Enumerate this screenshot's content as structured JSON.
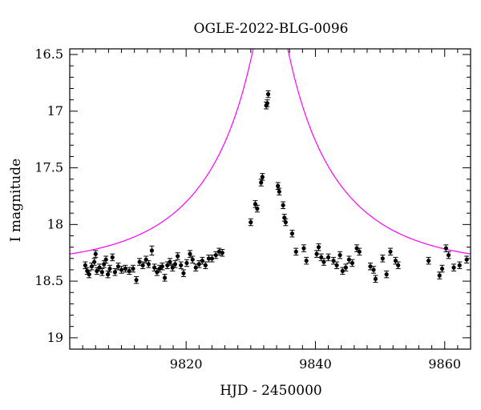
{
  "chart_data": {
    "type": "scatter",
    "title": "OGLE-2022-BLG-0096",
    "xlabel": "HJD - 2450000",
    "ylabel": "I magnitude",
    "xlim": [
      9802,
      9864
    ],
    "ylim": [
      19.1,
      16.45
    ],
    "y_inverted": true,
    "xticks": [
      "9820",
      "9840",
      "9860"
    ],
    "yticks": [
      "16.5",
      "17",
      "17.5",
      "18",
      "18.5",
      "19"
    ],
    "grid": false,
    "legend": "none",
    "colors": {
      "model": "#ff00ff",
      "points": "#000000"
    },
    "model": {
      "t0": 9833.05,
      "u0": 0.1,
      "tE": 19,
      "baseline": 18.37,
      "n_points": 400
    },
    "points": [
      {
        "x": 9804.4,
        "y": 18.36,
        "e": 0.03
      },
      {
        "x": 9804.7,
        "y": 18.41,
        "e": 0.03
      },
      {
        "x": 9805.0,
        "y": 18.44,
        "e": 0.03
      },
      {
        "x": 9805.4,
        "y": 18.37,
        "e": 0.03
      },
      {
        "x": 9805.8,
        "y": 18.33,
        "e": 0.03
      },
      {
        "x": 9806.0,
        "y": 18.26,
        "e": 0.03
      },
      {
        "x": 9806.2,
        "y": 18.41,
        "e": 0.03
      },
      {
        "x": 9806.6,
        "y": 18.38,
        "e": 0.03
      },
      {
        "x": 9807.0,
        "y": 18.42,
        "e": 0.03
      },
      {
        "x": 9807.3,
        "y": 18.35,
        "e": 0.03
      },
      {
        "x": 9807.6,
        "y": 18.31,
        "e": 0.03
      },
      {
        "x": 9807.9,
        "y": 18.44,
        "e": 0.03
      },
      {
        "x": 9808.2,
        "y": 18.39,
        "e": 0.03
      },
      {
        "x": 9808.6,
        "y": 18.29,
        "e": 0.03
      },
      {
        "x": 9809.0,
        "y": 18.42,
        "e": 0.03
      },
      {
        "x": 9809.5,
        "y": 18.37,
        "e": 0.03
      },
      {
        "x": 9810.0,
        "y": 18.4,
        "e": 0.03
      },
      {
        "x": 9810.6,
        "y": 18.39,
        "e": 0.03
      },
      {
        "x": 9811.2,
        "y": 18.41,
        "e": 0.03
      },
      {
        "x": 9811.8,
        "y": 18.39,
        "e": 0.03
      },
      {
        "x": 9812.3,
        "y": 18.49,
        "e": 0.03
      },
      {
        "x": 9812.8,
        "y": 18.33,
        "e": 0.03
      },
      {
        "x": 9813.3,
        "y": 18.36,
        "e": 0.03
      },
      {
        "x": 9813.8,
        "y": 18.31,
        "e": 0.03
      },
      {
        "x": 9814.2,
        "y": 18.35,
        "e": 0.03
      },
      {
        "x": 9814.7,
        "y": 18.23,
        "e": 0.04
      },
      {
        "x": 9815.1,
        "y": 18.38,
        "e": 0.03
      },
      {
        "x": 9815.5,
        "y": 18.42,
        "e": 0.03
      },
      {
        "x": 9815.9,
        "y": 18.39,
        "e": 0.03
      },
      {
        "x": 9816.3,
        "y": 18.37,
        "e": 0.03
      },
      {
        "x": 9816.7,
        "y": 18.47,
        "e": 0.03
      },
      {
        "x": 9817.1,
        "y": 18.36,
        "e": 0.03
      },
      {
        "x": 9817.5,
        "y": 18.33,
        "e": 0.03
      },
      {
        "x": 9817.9,
        "y": 18.38,
        "e": 0.03
      },
      {
        "x": 9818.3,
        "y": 18.35,
        "e": 0.03
      },
      {
        "x": 9818.7,
        "y": 18.28,
        "e": 0.03
      },
      {
        "x": 9819.2,
        "y": 18.36,
        "e": 0.03
      },
      {
        "x": 9819.6,
        "y": 18.43,
        "e": 0.03
      },
      {
        "x": 9820.1,
        "y": 18.34,
        "e": 0.03
      },
      {
        "x": 9820.6,
        "y": 18.26,
        "e": 0.03
      },
      {
        "x": 9821.0,
        "y": 18.31,
        "e": 0.03
      },
      {
        "x": 9821.5,
        "y": 18.38,
        "e": 0.03
      },
      {
        "x": 9822.0,
        "y": 18.35,
        "e": 0.03
      },
      {
        "x": 9822.5,
        "y": 18.32,
        "e": 0.03
      },
      {
        "x": 9823.0,
        "y": 18.36,
        "e": 0.03
      },
      {
        "x": 9823.5,
        "y": 18.3,
        "e": 0.03
      },
      {
        "x": 9824.0,
        "y": 18.3,
        "e": 0.03
      },
      {
        "x": 9824.6,
        "y": 18.27,
        "e": 0.03
      },
      {
        "x": 9825.1,
        "y": 18.24,
        "e": 0.03
      },
      {
        "x": 9825.6,
        "y": 18.25,
        "e": 0.03
      },
      {
        "x": 9830.0,
        "y": 17.98,
        "e": 0.03
      },
      {
        "x": 9830.7,
        "y": 17.82,
        "e": 0.03
      },
      {
        "x": 9831.0,
        "y": 17.86,
        "e": 0.03
      },
      {
        "x": 9831.6,
        "y": 17.63,
        "e": 0.03
      },
      {
        "x": 9831.8,
        "y": 17.58,
        "e": 0.03
      },
      {
        "x": 9832.4,
        "y": 16.95,
        "e": 0.03
      },
      {
        "x": 9832.55,
        "y": 16.93,
        "e": 0.03
      },
      {
        "x": 9832.7,
        "y": 16.85,
        "e": 0.03
      },
      {
        "x": 9834.2,
        "y": 17.66,
        "e": 0.03
      },
      {
        "x": 9834.4,
        "y": 17.71,
        "e": 0.03
      },
      {
        "x": 9835.0,
        "y": 17.83,
        "e": 0.03
      },
      {
        "x": 9835.2,
        "y": 17.94,
        "e": 0.03
      },
      {
        "x": 9835.4,
        "y": 17.98,
        "e": 0.03
      },
      {
        "x": 9836.4,
        "y": 18.08,
        "e": 0.03
      },
      {
        "x": 9837.0,
        "y": 18.24,
        "e": 0.03
      },
      {
        "x": 9838.2,
        "y": 18.21,
        "e": 0.03
      },
      {
        "x": 9838.6,
        "y": 18.32,
        "e": 0.03
      },
      {
        "x": 9840.2,
        "y": 18.26,
        "e": 0.03
      },
      {
        "x": 9840.5,
        "y": 18.2,
        "e": 0.03
      },
      {
        "x": 9840.9,
        "y": 18.29,
        "e": 0.03
      },
      {
        "x": 9841.3,
        "y": 18.33,
        "e": 0.03
      },
      {
        "x": 9842.0,
        "y": 18.29,
        "e": 0.03
      },
      {
        "x": 9842.8,
        "y": 18.32,
        "e": 0.03
      },
      {
        "x": 9843.3,
        "y": 18.36,
        "e": 0.03
      },
      {
        "x": 9843.8,
        "y": 18.27,
        "e": 0.03
      },
      {
        "x": 9844.2,
        "y": 18.41,
        "e": 0.03
      },
      {
        "x": 9844.7,
        "y": 18.38,
        "e": 0.03
      },
      {
        "x": 9845.2,
        "y": 18.31,
        "e": 0.03
      },
      {
        "x": 9845.7,
        "y": 18.34,
        "e": 0.03
      },
      {
        "x": 9846.4,
        "y": 18.21,
        "e": 0.03
      },
      {
        "x": 9846.8,
        "y": 18.24,
        "e": 0.03
      },
      {
        "x": 9848.5,
        "y": 18.37,
        "e": 0.03
      },
      {
        "x": 9849.0,
        "y": 18.4,
        "e": 0.03
      },
      {
        "x": 9849.3,
        "y": 18.48,
        "e": 0.03
      },
      {
        "x": 9850.4,
        "y": 18.3,
        "e": 0.03
      },
      {
        "x": 9851.0,
        "y": 18.44,
        "e": 0.03
      },
      {
        "x": 9851.6,
        "y": 18.24,
        "e": 0.03
      },
      {
        "x": 9852.4,
        "y": 18.32,
        "e": 0.03
      },
      {
        "x": 9852.8,
        "y": 18.36,
        "e": 0.03
      },
      {
        "x": 9857.5,
        "y": 18.32,
        "e": 0.03
      },
      {
        "x": 9859.2,
        "y": 18.45,
        "e": 0.03
      },
      {
        "x": 9859.6,
        "y": 18.39,
        "e": 0.03
      },
      {
        "x": 9860.2,
        "y": 18.21,
        "e": 0.03
      },
      {
        "x": 9860.6,
        "y": 18.27,
        "e": 0.03
      },
      {
        "x": 9861.4,
        "y": 18.38,
        "e": 0.03
      },
      {
        "x": 9862.3,
        "y": 18.36,
        "e": 0.03
      },
      {
        "x": 9863.4,
        "y": 18.31,
        "e": 0.03
      }
    ]
  }
}
